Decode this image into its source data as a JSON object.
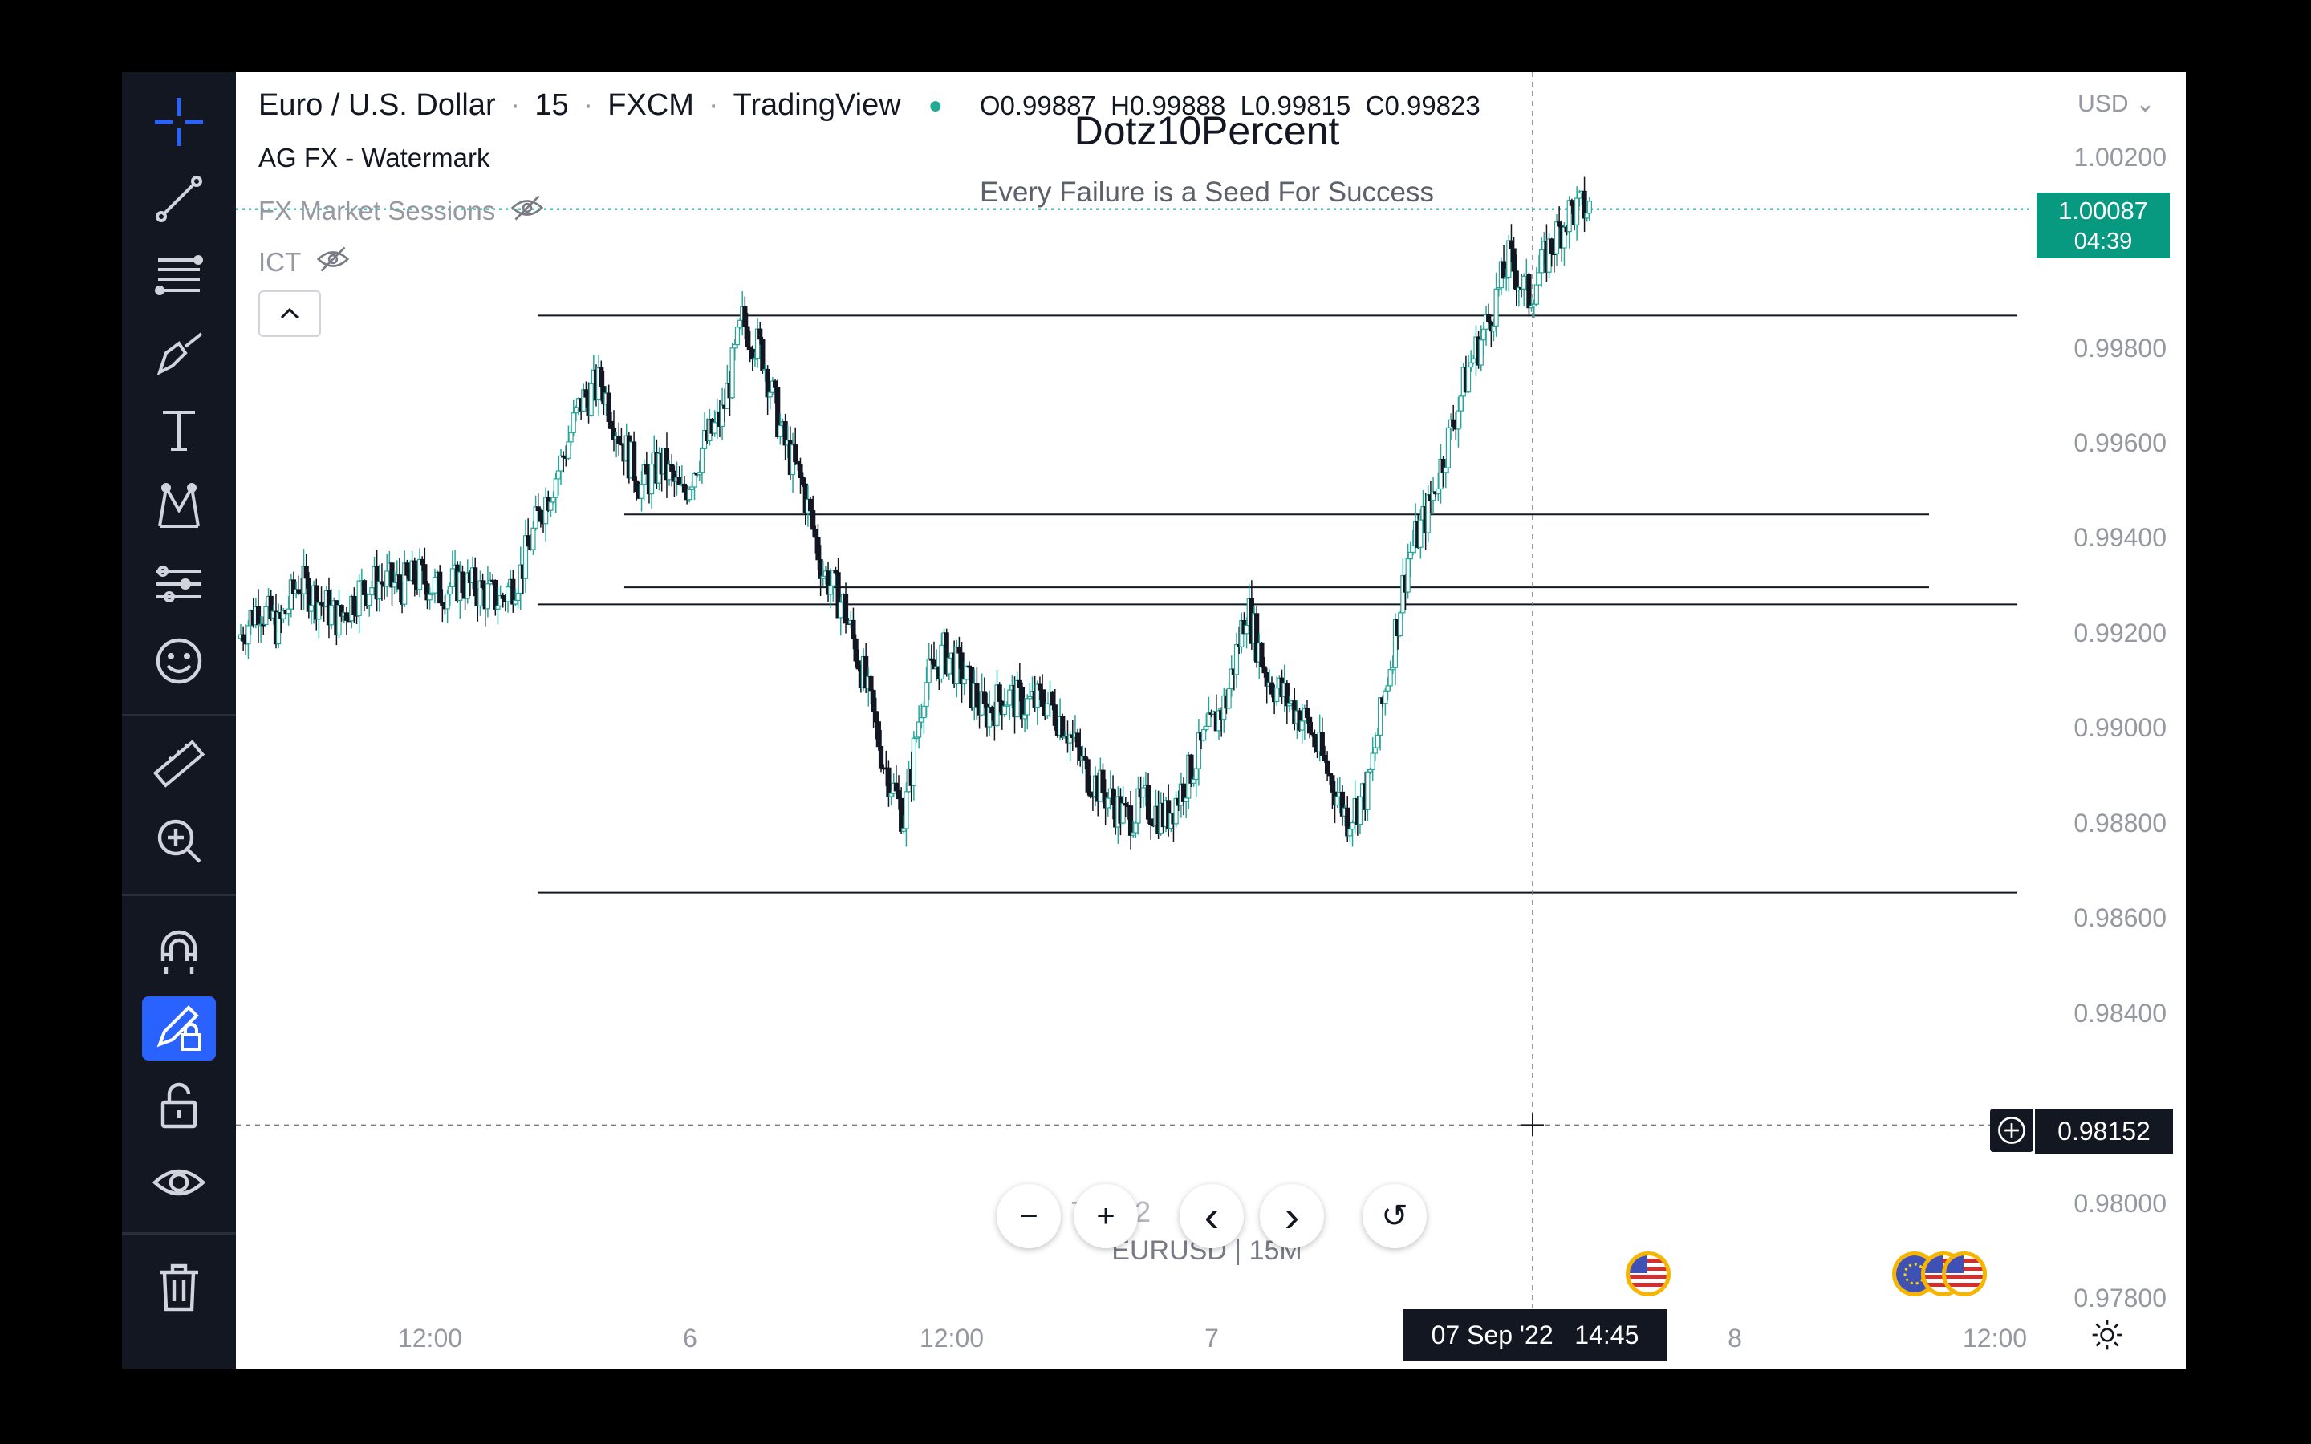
{
  "toolbar": {
    "tools": [
      {
        "name": "crosshair-icon",
        "label": "Crosshair"
      },
      {
        "name": "trend-line-icon",
        "label": "Trend line"
      },
      {
        "name": "fib-retracement-icon",
        "label": "Fib retracement"
      },
      {
        "name": "brush-icon",
        "label": "Brush"
      },
      {
        "name": "text-icon",
        "label": "Text"
      },
      {
        "name": "pattern-icon",
        "label": "Patterns"
      },
      {
        "name": "forecast-icon",
        "label": "Prediction"
      },
      {
        "name": "emoji-icon",
        "label": "Icons"
      },
      {
        "name": "ruler-icon",
        "label": "Measure"
      },
      {
        "name": "zoom-in-icon",
        "label": "Zoom in"
      },
      {
        "name": "magnet-icon",
        "label": "Magnet"
      },
      {
        "name": "lock-drawing-icon",
        "label": "Stay in drawing mode"
      },
      {
        "name": "unlock-icon",
        "label": "Lock all drawings"
      },
      {
        "name": "eye-icon",
        "label": "Hide all drawings"
      },
      {
        "name": "trash-icon",
        "label": "Remove drawings"
      }
    ]
  },
  "header": {
    "symbol": "Euro / U.S. Dollar",
    "interval": "15",
    "exchange": "FXCM",
    "provider": "TradingView",
    "ohlc": {
      "o_label": "O",
      "o": "0.99887",
      "h_label": "H",
      "h": "0.99888",
      "l_label": "L",
      "l": "0.99815",
      "c_label": "C",
      "c": "0.99823"
    },
    "separator": "·"
  },
  "indicators": [
    {
      "label": "AG FX - Watermark",
      "hidden": false
    },
    {
      "label": "FX Market Sessions",
      "hidden": true
    },
    {
      "label": "ICT",
      "hidden": true
    }
  ],
  "collapse_icon": "^",
  "watermark": {
    "title": "Dotz10Percent",
    "subtitle": "Every Failure is a Seed For Success",
    "symbol_line": "EURUSD | 15M"
  },
  "price_scale": {
    "currency": "USD",
    "labels": [
      "1.00200",
      "0.99800",
      "0.99600",
      "0.99400",
      "0.99200",
      "0.99000",
      "0.98800",
      "0.98600",
      "0.98400",
      "0.98000",
      "0.97800"
    ],
    "current_price": "1.00087",
    "countdown": "04:39",
    "crosshair_price": "0.98152"
  },
  "time_axis": {
    "labels": [
      "12:00",
      "6",
      "12:00",
      "7",
      "8",
      "12:00"
    ],
    "crosshair_time": "07 Sep '22   14:45"
  },
  "navigation": {
    "zoom_out": "−",
    "zoom_in": "+",
    "scroll_left": "‹",
    "scroll_right": "›",
    "reset": "↺",
    "faded_date": "7/ 202"
  },
  "colors": {
    "up": "#26a69a",
    "down": "#131722",
    "accent": "#2962ff",
    "price_tag": "#089981"
  },
  "chart_data": {
    "type": "candlestick",
    "symbol": "EURUSD",
    "interval": "15",
    "ylim": [
      0.9775,
      1.0025
    ],
    "horizontal_levels": [
      0.99862,
      0.99442,
      0.99288,
      0.99252,
      0.98643
    ],
    "last_price": 1.00087,
    "crosshair_price": 0.98152,
    "path_close": [
      0.9918,
      0.9925,
      0.992,
      0.993,
      0.9926,
      0.9922,
      0.9928,
      0.993,
      0.9929,
      0.9931,
      0.9928,
      0.993,
      0.9928,
      0.9926,
      0.9932,
      0.9945,
      0.9955,
      0.9968,
      0.9972,
      0.996,
      0.995,
      0.9955,
      0.9948,
      0.9958,
      0.9965,
      0.9985,
      0.9978,
      0.996,
      0.995,
      0.9932,
      0.9925,
      0.991,
      0.9892,
      0.988,
      0.9908,
      0.9915,
      0.991,
      0.9902,
      0.9906,
      0.9904,
      0.9905,
      0.99,
      0.989,
      0.9885,
      0.988,
      0.9883,
      0.988,
      0.9888,
      0.9897,
      0.9905,
      0.9925,
      0.991,
      0.9905,
      0.99,
      0.989,
      0.988,
      0.9886,
      0.991,
      0.9935,
      0.9945,
      0.996,
      0.9975,
      0.9985,
      0.9998,
      0.999,
      1.0,
      1.0008,
      1.0009
    ]
  }
}
